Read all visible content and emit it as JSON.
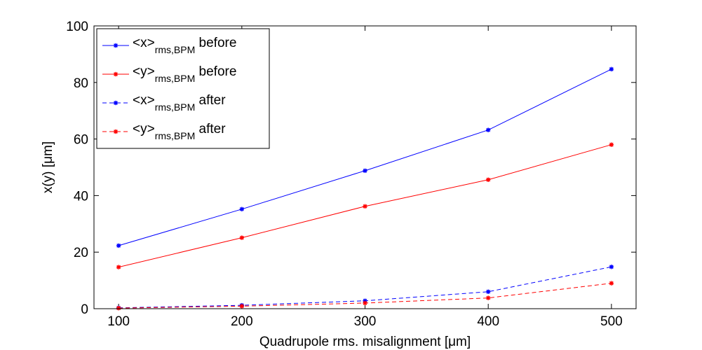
{
  "chart_data": {
    "type": "line",
    "xlabel": "Quadrupole rms. misalignment [μm]",
    "ylabel": "x(y) [μm]",
    "xlim": [
      80,
      520
    ],
    "ylim": [
      0,
      100
    ],
    "xticks": [
      100,
      200,
      300,
      400,
      500
    ],
    "yticks": [
      0,
      20,
      40,
      60,
      80,
      100
    ],
    "grid": false,
    "legend_position": "top-left",
    "x": [
      100,
      200,
      300,
      400,
      500
    ],
    "series": [
      {
        "name": "<x>",
        "name_sub": "rms,BPM",
        "name_suffix": " before",
        "values": [
          22.3,
          35.2,
          48.8,
          63.2,
          84.7
        ],
        "color": "#0000ff",
        "dash": "solid"
      },
      {
        "name": "<y>",
        "name_sub": "rms,BPM",
        "name_suffix": " before",
        "values": [
          14.7,
          25.1,
          36.2,
          45.6,
          58.0
        ],
        "color": "#ff0000",
        "dash": "solid"
      },
      {
        "name": "<x>",
        "name_sub": "rms,BPM",
        "name_suffix": " after",
        "values": [
          0.3,
          1.2,
          2.8,
          6.0,
          14.8
        ],
        "color": "#0000ff",
        "dash": "dashed"
      },
      {
        "name": "<y>",
        "name_sub": "rms,BPM",
        "name_suffix": " after",
        "values": [
          0.2,
          0.9,
          2.0,
          3.8,
          9.0
        ],
        "color": "#ff0000",
        "dash": "dashed"
      }
    ]
  }
}
